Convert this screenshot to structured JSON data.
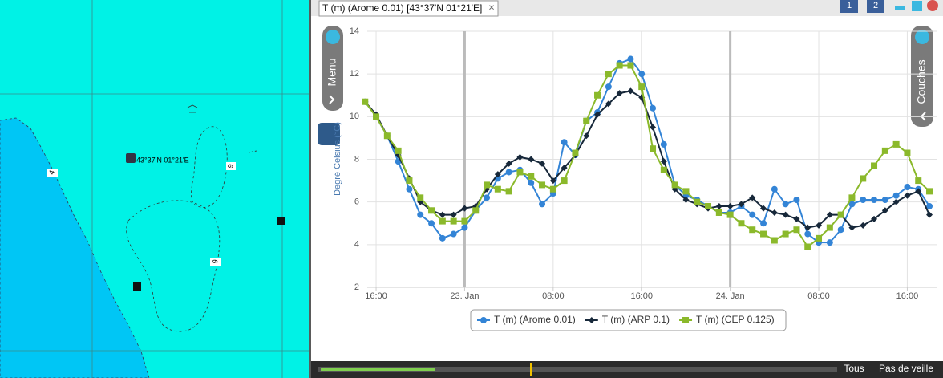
{
  "map": {
    "coordinate_label": "43°37'N 01°21'E",
    "depth_labels": [
      "4",
      "9",
      "9"
    ]
  },
  "tab": {
    "title": "T (m) (Arome 0.01) [43°37'N 01°21'E]",
    "close": "×"
  },
  "screens": [
    "1",
    "2"
  ],
  "side_buttons": {
    "left": "Menu",
    "right": "Couches"
  },
  "bottom_bar": {
    "all": "Tous",
    "standby": "Pas de veille"
  },
  "chart_data": {
    "type": "line",
    "y_label": "Degré Celsius (°C)",
    "x": [
      15,
      16,
      17,
      18,
      19,
      20,
      21,
      22,
      23,
      24,
      25,
      26,
      27,
      28,
      29,
      30,
      31,
      32,
      33,
      34,
      35,
      36,
      37,
      38,
      39,
      40,
      41,
      42,
      43,
      44,
      45,
      46,
      47,
      48,
      49,
      50,
      51,
      52,
      53,
      54,
      55,
      56,
      57,
      58,
      59,
      60,
      61,
      62,
      63,
      64,
      65,
      66
    ],
    "xlim": [
      15.2,
      66.65
    ],
    "xticks": [
      {
        "value": 16,
        "label": "16:00"
      },
      {
        "value": 24,
        "label": "23. Jan"
      },
      {
        "value": 32,
        "label": "08:00"
      },
      {
        "value": 40,
        "label": "16:00"
      },
      {
        "value": 48,
        "label": "24. Jan"
      },
      {
        "value": 56,
        "label": "08:00"
      },
      {
        "value": 64,
        "label": "16:00"
      }
    ],
    "ylim": [
      2,
      14
    ],
    "yticks": [
      2,
      4,
      6,
      8,
      10,
      12,
      14
    ],
    "grid": true,
    "series": [
      {
        "name": "T (m) (Arome 0.01)",
        "color": "#3384d6",
        "marker": "circle",
        "values": [
          10.7,
          10.0,
          9.1,
          7.9,
          6.6,
          5.4,
          5.0,
          4.3,
          4.5,
          4.8,
          5.6,
          6.2,
          7.1,
          7.4,
          7.5,
          6.9,
          5.9,
          6.4,
          8.8,
          8.2,
          9.8,
          10.2,
          11.4,
          12.5,
          12.7,
          12.0,
          10.4,
          8.7,
          6.8,
          6.3,
          6.1,
          5.8,
          5.5,
          5.5,
          5.8,
          5.4,
          5.0,
          6.6,
          5.9,
          6.1,
          4.5,
          4.1,
          4.1,
          4.7,
          5.9,
          6.1,
          6.1,
          6.1,
          6.3,
          6.7,
          6.6,
          5.8
        ]
      },
      {
        "name": "T (m) (ARP 0.1)",
        "color": "#17283a",
        "marker": "diamond",
        "values": [
          10.7,
          10.1,
          9.1,
          8.2,
          7.1,
          6.0,
          5.6,
          5.4,
          5.4,
          5.7,
          5.8,
          6.6,
          7.3,
          7.8,
          8.1,
          8.0,
          7.8,
          7.0,
          7.6,
          8.2,
          9.1,
          10.1,
          10.6,
          11.1,
          11.2,
          10.9,
          9.5,
          7.9,
          6.6,
          6.1,
          5.9,
          5.7,
          5.8,
          5.8,
          5.9,
          6.2,
          5.7,
          5.5,
          5.4,
          5.2,
          4.8,
          4.9,
          5.4,
          5.4,
          4.8,
          4.9,
          5.2,
          5.6,
          6.0,
          6.3,
          6.5,
          5.4
        ]
      },
      {
        "name": "T (m) (CEP 0.125)",
        "color": "#8bb92b",
        "marker": "square",
        "values": [
          10.7,
          10.0,
          9.1,
          8.4,
          7.0,
          6.2,
          5.6,
          5.1,
          5.1,
          5.1,
          5.6,
          6.8,
          6.6,
          6.5,
          7.4,
          7.2,
          6.8,
          6.6,
          7.0,
          8.3,
          9.8,
          11.0,
          12.0,
          12.4,
          12.4,
          11.4,
          8.5,
          7.5,
          6.8,
          6.5,
          6.0,
          5.8,
          5.5,
          5.4,
          5.0,
          4.7,
          4.5,
          4.2,
          4.5,
          4.7,
          3.9,
          4.3,
          4.8,
          5.4,
          6.2,
          7.1,
          7.7,
          8.4,
          8.7,
          8.3,
          7.0,
          6.5
        ]
      }
    ]
  }
}
